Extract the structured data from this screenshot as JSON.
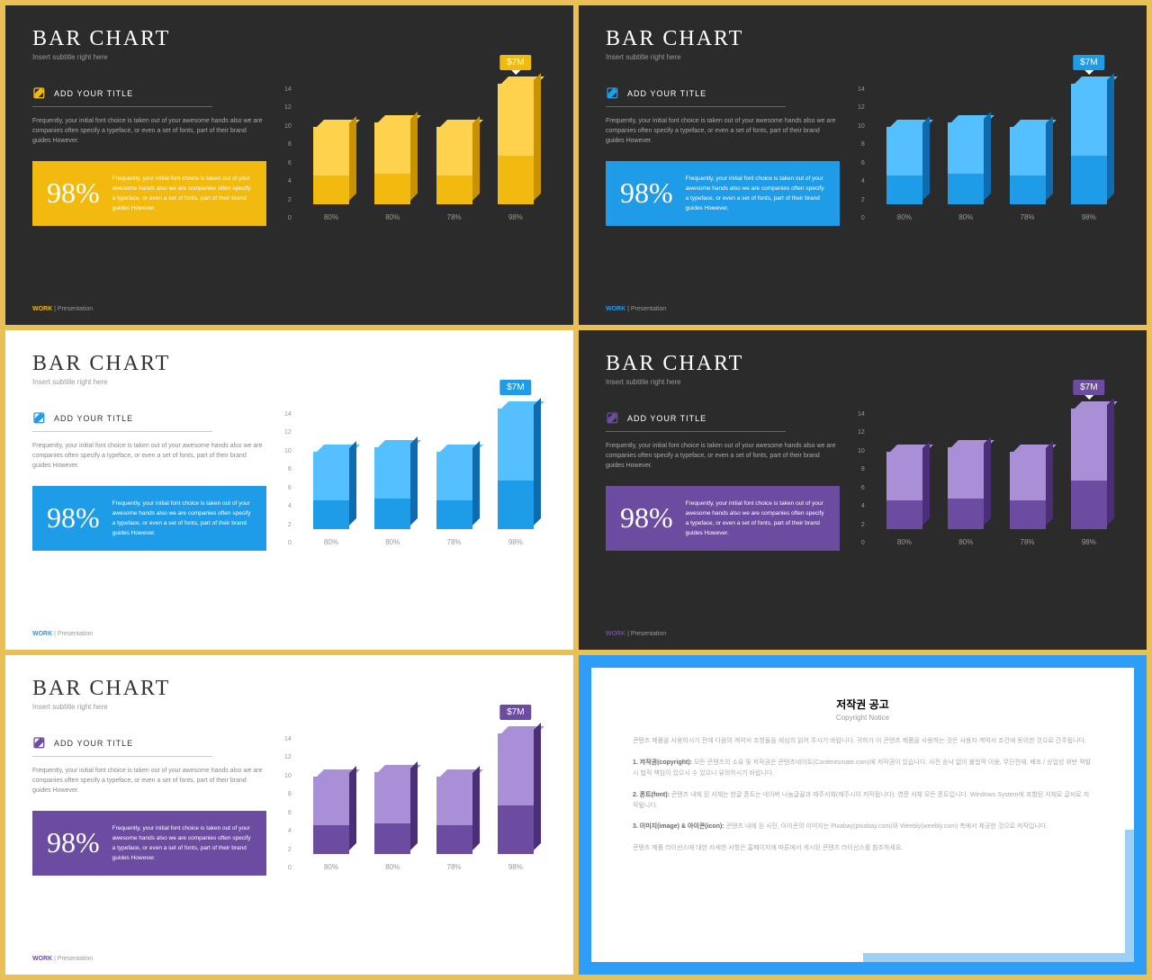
{
  "common": {
    "title": "BAR CHART",
    "subtitle": "Insert subtitle right here",
    "section_label": "ADD YOUR TITLE",
    "desc": "Frequently, your initial font choice is taken out of your awesome hands also we are companies often specify a typeface, or even a set of fonts, part of their brand guides However.",
    "big_pct": "98%",
    "big_text": "Frequently, your initial font choice is taken out of your awesome hands also we are companies often specify a typeface, or even a set of fonts, part of their brand guides However.",
    "callout": "$7M",
    "footer_work": "WORK",
    "footer_rest": " | Presentation",
    "chart": {
      "type": "bar",
      "yticks": [
        "14",
        "12",
        "10",
        "8",
        "6",
        "4",
        "2",
        "0"
      ],
      "ymax": 14,
      "bars": [
        {
          "label": "80%",
          "value": 8,
          "segments": [
            3,
            5
          ]
        },
        {
          "label": "80%",
          "value": 8.5,
          "segments": [
            3.2,
            5.3
          ]
        },
        {
          "label": "78%",
          "value": 8,
          "segments": [
            3,
            5
          ]
        },
        {
          "label": "98%",
          "value": 12.5,
          "segments": [
            5,
            7.5
          ],
          "callout": true
        }
      ]
    }
  },
  "slides": [
    {
      "bg": "dark",
      "accent": "#f2b90f",
      "accent_dark": "#c99200",
      "accent_light": "#ffd24d",
      "footer_color": "#f2b90f"
    },
    {
      "bg": "dark",
      "accent": "#1e9ce8",
      "accent_dark": "#0f6bb0",
      "accent_light": "#55c0ff",
      "footer_color": "#1e9ce8"
    },
    {
      "bg": "light",
      "accent": "#1e9ce8",
      "accent_dark": "#0f6bb0",
      "accent_light": "#55c0ff",
      "footer_color": "#1e9ce8"
    },
    {
      "bg": "dark",
      "accent": "#6b4ca0",
      "accent_dark": "#4a2f78",
      "accent_light": "#a98fd6",
      "footer_color": "#6b4ca0"
    },
    {
      "bg": "light",
      "accent": "#6b4ca0",
      "accent_dark": "#4a2f78",
      "accent_light": "#a98fd6",
      "footer_color": "#6b4ca0"
    }
  ],
  "copyright": {
    "title": "저작권 공고",
    "sub": "Copyright Notice",
    "p1": "콘텐츠 제품을 사용하시기 전에 다음의 계약서 조항들을 세심히 읽어 주시기 바랍니다. 귀하가 이 콘텐츠 제품을 사용하는 것은 사용자 계약서 조건에 동의한 것으로 간주됩니다.",
    "p2h": "1. 저작권(copyright):",
    "p2": " 모든 콘텐츠의 소유 및 저작권은 콘텐츠네이트(Contentsmate.com)에 저작권이 있습니다. 사전 승낙 없이 불법적 이용, 무단전재, 배포 / 상업성 위반 적발시 법적 책임이 있으시 수 있으니 유의하시기 바랍니다.",
    "p3h": "2. 폰트(font):",
    "p3": " 콘텐츠 내에 된 서체는 한글 폰트는 네이버 나눔글꼴과 제주서체(제주시이 저작됩니다). 영문 서체 모든 폰트입니다. Windows System에 포함된 서체로 글씨로 저작됩니다.",
    "p4h": "3. 이미지(image) & 아이콘(icon):",
    "p4": " 콘텐츠 내에 된 사진, 아이콘의 이미지는 Pixabay(pixabay.com)와 Weebly(weebly.com) 측에서 제공한 것으로 저작입니다.",
    "p5": "콘텐츠 제품 라이선스에 대한 자세한 사항은 홈페이지에 따른에서 게시된 콘텐츠 라이선스를 참조하세요."
  }
}
